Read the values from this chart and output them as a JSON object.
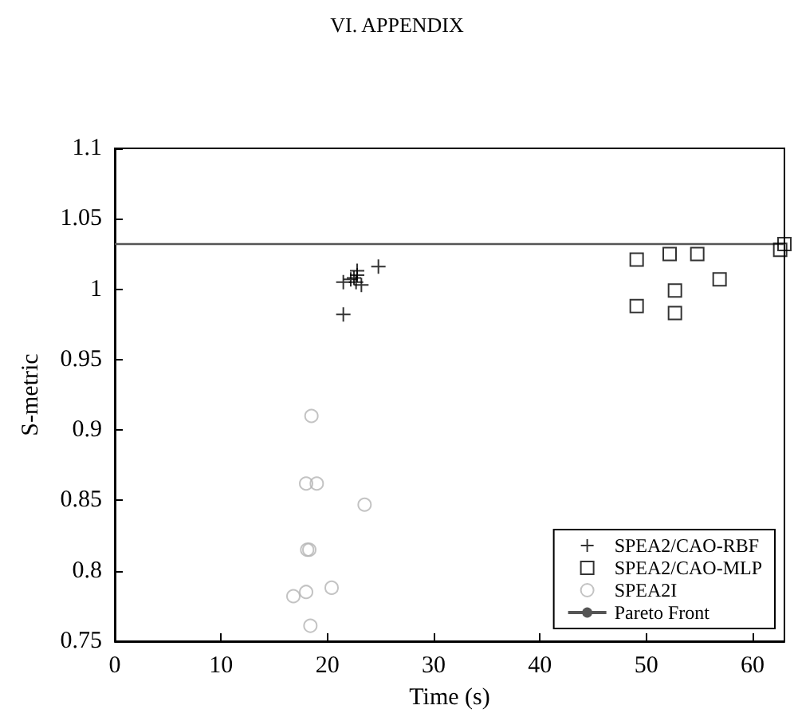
{
  "chart_data": {
    "type": "scatter",
    "title": "VI. APPENDIX",
    "xlabel": "Time (s)",
    "ylabel": "S-metric",
    "xlim": [
      0,
      63
    ],
    "xticks": [
      0,
      10,
      20,
      30,
      40,
      50,
      60
    ],
    "ylim": [
      0.75,
      1.1
    ],
    "yticks": [
      0.75,
      0.8,
      0.85,
      0.9,
      0.95,
      1,
      1.05,
      1.1
    ],
    "grid": false,
    "legend": "bottom right",
    "series": [
      {
        "name": "SPEA2/CAO-RBF",
        "marker": "cross",
        "color": "#000000",
        "x": [
          21.5,
          22.2,
          22.5,
          22.8,
          22.8,
          23.2,
          24.8,
          21.5,
          22.7
        ],
        "values": [
          1.005,
          1.007,
          1.008,
          1.013,
          1.01,
          1.003,
          1.016,
          0.982,
          1.005
        ]
      },
      {
        "name": "SPEA2/CAO-MLP",
        "marker": "square",
        "color": "#000000",
        "x": [
          49.1,
          52.2,
          54.8,
          56.9,
          52.7,
          49.1,
          52.7,
          62.6,
          63.0
        ],
        "values": [
          1.021,
          1.025,
          1.025,
          1.007,
          0.999,
          0.988,
          0.983,
          1.028,
          1.032
        ]
      },
      {
        "name": "SPEA2I",
        "marker": "circle",
        "color": "#b4b4b4",
        "x": [
          18.5,
          18.0,
          19.0,
          23.5,
          18.1,
          18.3,
          20.4,
          18.0,
          16.8,
          18.4
        ],
        "values": [
          0.91,
          0.862,
          0.862,
          0.847,
          0.815,
          0.815,
          0.788,
          0.785,
          0.782,
          0.761
        ]
      },
      {
        "name": "Pareto Front",
        "type": "line",
        "marker": "none",
        "line_style": "solid",
        "color": "#555555",
        "x": [
          0,
          63
        ],
        "values": [
          1.032,
          1.032
        ]
      }
    ]
  }
}
